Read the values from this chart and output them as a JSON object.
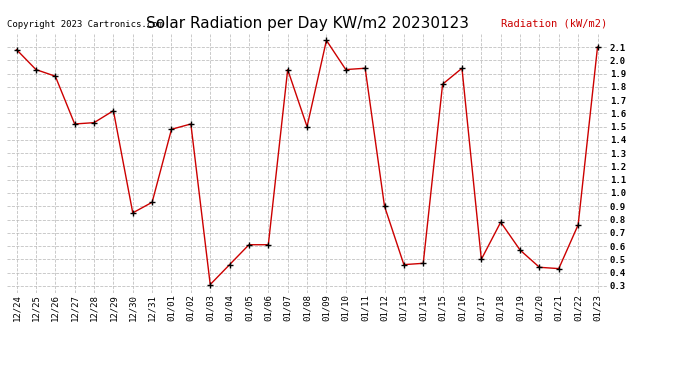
{
  "title": "Solar Radiation per Day KW/m2 20230123",
  "ylabel": "Radiation (kW/m2)",
  "copyright": "Copyright 2023 Cartronics.com",
  "dates": [
    "12/24",
    "12/25",
    "12/26",
    "12/27",
    "12/28",
    "12/29",
    "12/30",
    "12/31",
    "01/01",
    "01/02",
    "01/03",
    "01/04",
    "01/05",
    "01/06",
    "01/07",
    "01/08",
    "01/09",
    "01/10",
    "01/11",
    "01/12",
    "01/13",
    "01/14",
    "01/15",
    "01/16",
    "01/17",
    "01/18",
    "01/19",
    "01/20",
    "01/21",
    "01/22",
    "01/23"
  ],
  "values": [
    2.08,
    1.93,
    1.88,
    1.52,
    1.53,
    1.62,
    0.85,
    0.93,
    1.48,
    1.52,
    0.31,
    0.46,
    0.61,
    0.61,
    1.93,
    1.5,
    2.15,
    1.93,
    1.94,
    0.9,
    0.46,
    0.47,
    1.82,
    1.94,
    0.5,
    0.78,
    0.57,
    0.44,
    0.43,
    0.76,
    2.1
  ],
  "line_color": "#cc0000",
  "marker_color": "#000000",
  "background_color": "#ffffff",
  "grid_color": "#bbbbbb",
  "title_color": "#000000",
  "ylabel_color": "#cc0000",
  "copyright_color": "#000000",
  "ylim": [
    0.25,
    2.2
  ],
  "yticks": [
    0.3,
    0.4,
    0.5,
    0.6,
    0.7,
    0.8,
    0.9,
    1.0,
    1.1,
    1.2,
    1.3,
    1.4,
    1.5,
    1.6,
    1.7,
    1.8,
    1.9,
    2.0,
    2.1
  ],
  "title_fontsize": 11,
  "ylabel_fontsize": 7.5,
  "tick_fontsize": 6.5,
  "copyright_fontsize": 6.5
}
